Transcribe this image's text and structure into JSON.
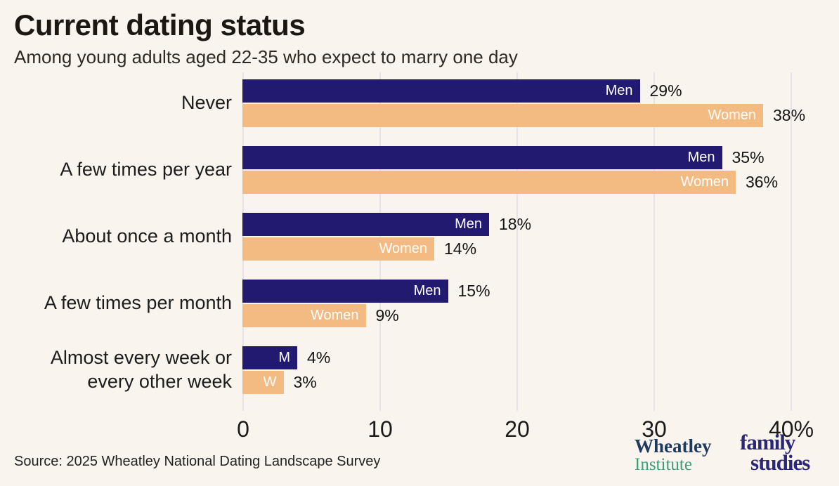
{
  "title": "Current dating status",
  "subtitle": "Among young adults aged 22-35 who expect to marry one day",
  "source": "Source: 2025 Wheatley National Dating Landscape Survey",
  "logos": {
    "wheatley_line1": "Wheatley",
    "wheatley_line2": "Institute",
    "ifs_line1": "family",
    "ifs_line2": "studies"
  },
  "colors": {
    "background": "#faf4ee",
    "gridline": "#e6e2e8",
    "men": "#211a70",
    "women": "#f3ba81",
    "wheatley_navy": "#1e3a5f",
    "wheatley_green": "#3f9d78",
    "ifs_navy": "#2b2777"
  },
  "chart_data": {
    "type": "bar",
    "orientation": "horizontal",
    "title": "Current dating status",
    "subtitle": "Among young adults aged 22-35 who expect to marry one day",
    "categories": [
      "Never",
      "A few times per year",
      "About once a month",
      "A few times per month",
      "Almost every week or\nevery other week"
    ],
    "series": [
      {
        "name": "Men",
        "color": "#211a70",
        "values": [
          29,
          35,
          18,
          15,
          4
        ]
      },
      {
        "name": "Women",
        "color": "#f3ba81",
        "values": [
          38,
          36,
          14,
          9,
          3
        ]
      }
    ],
    "bar_labels": [
      [
        "Men",
        "Women"
      ],
      [
        "Men",
        "Women"
      ],
      [
        "Men",
        "Women"
      ],
      [
        "Men",
        "Women"
      ],
      [
        "M",
        "W"
      ]
    ],
    "value_labels": [
      [
        "29%",
        "38%"
      ],
      [
        "35%",
        "36%"
      ],
      [
        "18%",
        "14%"
      ],
      [
        "15%",
        "9%"
      ],
      [
        "4%",
        "3%"
      ]
    ],
    "xlim": [
      0,
      40
    ],
    "x_ticks": [
      "0",
      "10",
      "20",
      "30",
      "40%"
    ],
    "x_tick_values": [
      0,
      10,
      20,
      30,
      40
    ],
    "grid": "vertical major gridlines",
    "legend": "series labels printed inside bar ends, values outside bar ends"
  }
}
